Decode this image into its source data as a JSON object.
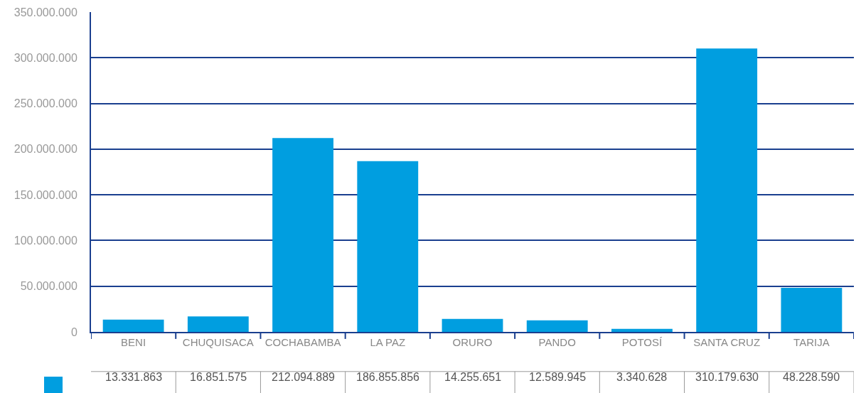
{
  "chart_data": {
    "type": "bar",
    "categories": [
      "BENI",
      "CHUQUISACA",
      "COCHABAMBA",
      "LA PAZ",
      "ORURO",
      "PANDO",
      "POTOSÍ",
      "SANTA CRUZ",
      "TARIJA"
    ],
    "values": [
      13331863,
      16851575,
      212094889,
      186855856,
      14255651,
      12589945,
      3340628,
      310179630,
      48228590
    ],
    "value_labels": [
      "13.331.863",
      "16.851.575",
      "212.094.889",
      "186.855.856",
      "14.255.651",
      "12.589.945",
      "3.340.628",
      "310.179.630",
      "48.228.590"
    ],
    "color": "#009ee0",
    "ylim": [
      0,
      350000000
    ],
    "yticks": [
      0,
      {
        "value": 50000000,
        "label": "50.000.000"
      },
      {
        "value": 100000000,
        "label": "100.000.000"
      },
      {
        "value": 150000000,
        "label": "150.000.000"
      },
      {
        "value": 200000000,
        "label": "200.000.000"
      },
      {
        "value": 250000000,
        "label": "250.000.000"
      },
      {
        "value": 300000000,
        "label": "300.000.000"
      },
      {
        "value": 350000000,
        "label": "350.000.000"
      }
    ],
    "grid": "y"
  }
}
